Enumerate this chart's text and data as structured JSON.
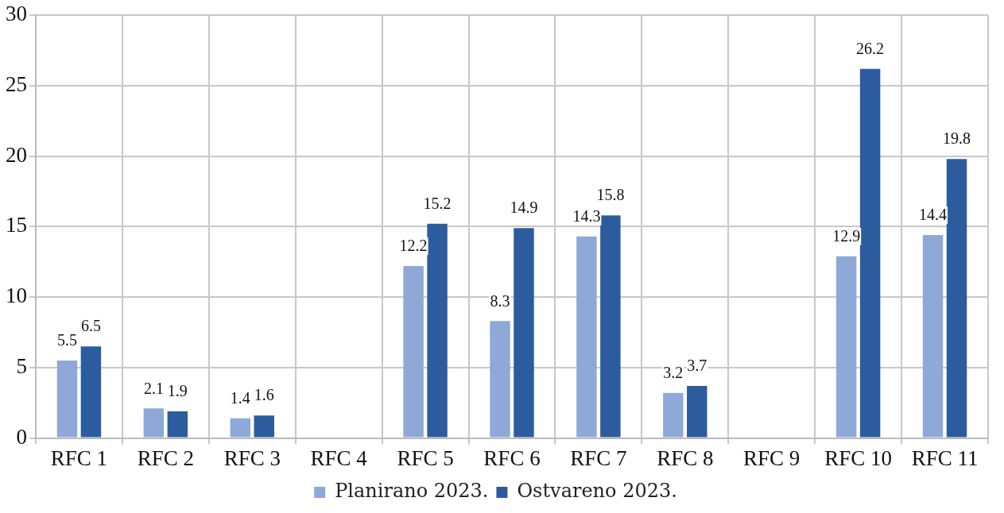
{
  "chart_data": {
    "type": "bar",
    "categories": [
      "RFC 1",
      "RFC 2",
      "RFC 3",
      "RFC 4",
      "RFC 5",
      "RFC 6",
      "RFC 7",
      "RFC 8",
      "RFC 9",
      "RFC 10",
      "RFC 11"
    ],
    "series": [
      {
        "name": "Planirano 2023.",
        "color": "#8ea9d8",
        "values": [
          5.5,
          2.1,
          1.4,
          null,
          12.2,
          8.3,
          14.3,
          3.2,
          null,
          12.9,
          14.4
        ]
      },
      {
        "name": "Ostvareno 2023.",
        "color": "#2c5c9e",
        "values": [
          6.5,
          1.9,
          1.6,
          null,
          15.2,
          14.9,
          15.8,
          3.7,
          null,
          26.2,
          19.8
        ]
      }
    ],
    "ylim": [
      0,
      30
    ],
    "yticks": [
      0,
      5,
      10,
      15,
      20,
      25,
      30
    ],
    "grid": true,
    "legend": "bottom",
    "data_labels": true
  }
}
